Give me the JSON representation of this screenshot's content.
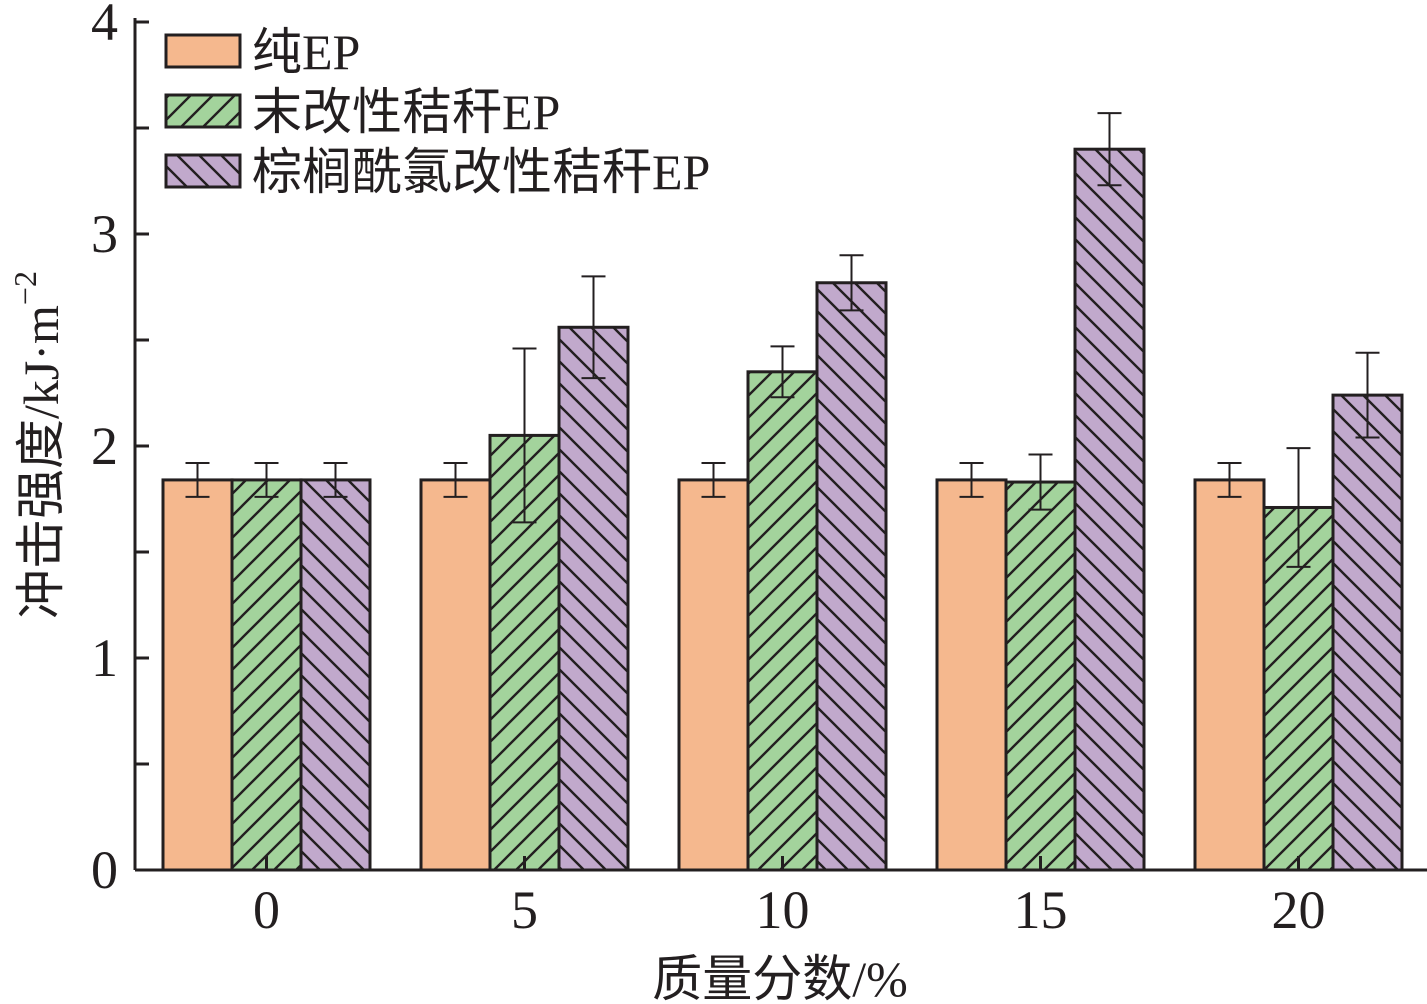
{
  "chart_data": {
    "type": "bar",
    "categories": [
      "0",
      "5",
      "10",
      "15",
      "20"
    ],
    "series": [
      {
        "name": "纯EP",
        "values": [
          1.84,
          1.84,
          1.84,
          1.84,
          1.84
        ],
        "errors": [
          0.08,
          0.08,
          0.08,
          0.08,
          0.08
        ],
        "color": "#f5b88e",
        "pattern": "none"
      },
      {
        "name": "末改性秸秆EP",
        "values": [
          1.84,
          2.05,
          2.35,
          1.83,
          1.71
        ],
        "errors": [
          0.08,
          0.41,
          0.12,
          0.13,
          0.28
        ],
        "color": "#a3d39c",
        "pattern": "forward-hatch"
      },
      {
        "name": "棕榈酰氯改性秸秆EP",
        "values": [
          1.84,
          2.56,
          2.77,
          3.4,
          2.24
        ],
        "errors": [
          0.08,
          0.24,
          0.13,
          0.17,
          0.2
        ],
        "color": "#c1a9cc",
        "pattern": "back-hatch"
      }
    ],
    "xlabel": "质量分数/%",
    "ylabel_main": "冲击强度/kJ·m",
    "ylabel_sup": "−2",
    "ylim": [
      0,
      4
    ],
    "yticks": [
      "0",
      "1",
      "2",
      "3",
      "4"
    ],
    "grid": false,
    "legend_position": "top-left"
  }
}
